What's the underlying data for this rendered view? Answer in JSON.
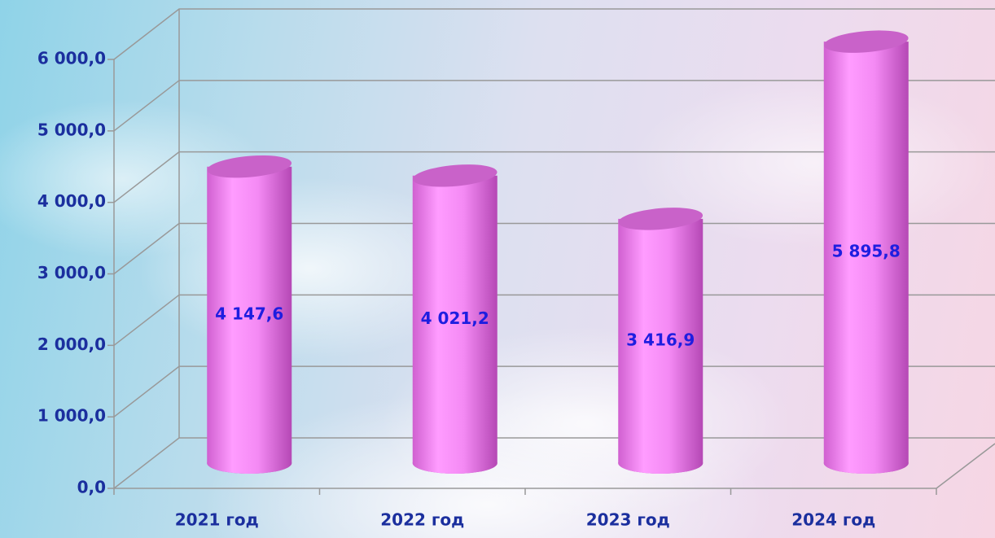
{
  "chart_data": {
    "type": "bar",
    "categories": [
      "2021 год",
      "2022 год",
      "2023 год",
      "2024 год"
    ],
    "values": [
      4147.6,
      4021.2,
      3416.9,
      5895.8
    ],
    "value_labels": [
      "4 147,6",
      "4 021,2",
      "3 416,9",
      "5 895,8"
    ],
    "color": "#f08cf0",
    "ylim": [
      0,
      6000
    ],
    "yticks": [
      {
        "value": 0,
        "label": "0,0"
      },
      {
        "value": 1000,
        "label": "1 000,0"
      },
      {
        "value": 2000,
        "label": "2 000,0"
      },
      {
        "value": 3000,
        "label": "3 000,0"
      },
      {
        "value": 4000,
        "label": "4 000,0"
      },
      {
        "value": 5000,
        "label": "5 000,0"
      },
      {
        "value": 6000,
        "label": "6 000,0"
      }
    ],
    "grid": true
  }
}
